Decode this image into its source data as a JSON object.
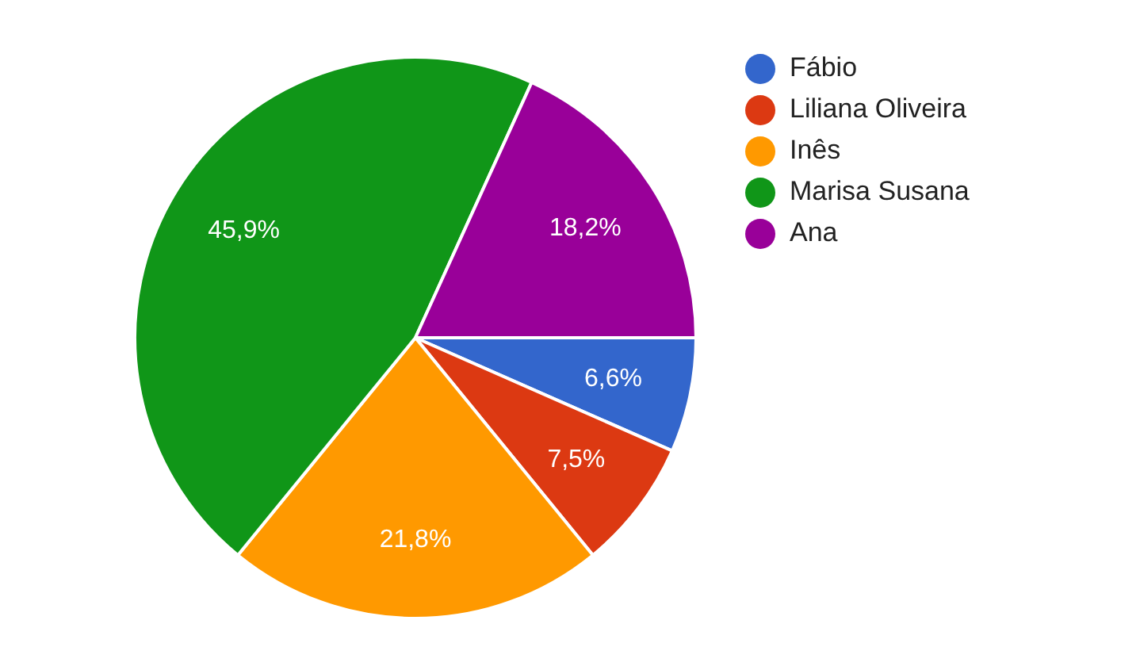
{
  "chart_data": {
    "type": "pie",
    "categories": [
      "Fábio",
      "Liliana Oliveira",
      "Inês",
      "Marisa Susana",
      "Ana"
    ],
    "values": [
      6.6,
      7.5,
      21.8,
      45.9,
      18.2
    ],
    "colors": [
      "#3366cc",
      "#dc3912",
      "#ff9900",
      "#109618",
      "#990099"
    ],
    "value_labels": [
      "6,6%",
      "7,5%",
      "21,8%",
      "45,9%",
      "18,2%"
    ],
    "legend": "right"
  }
}
